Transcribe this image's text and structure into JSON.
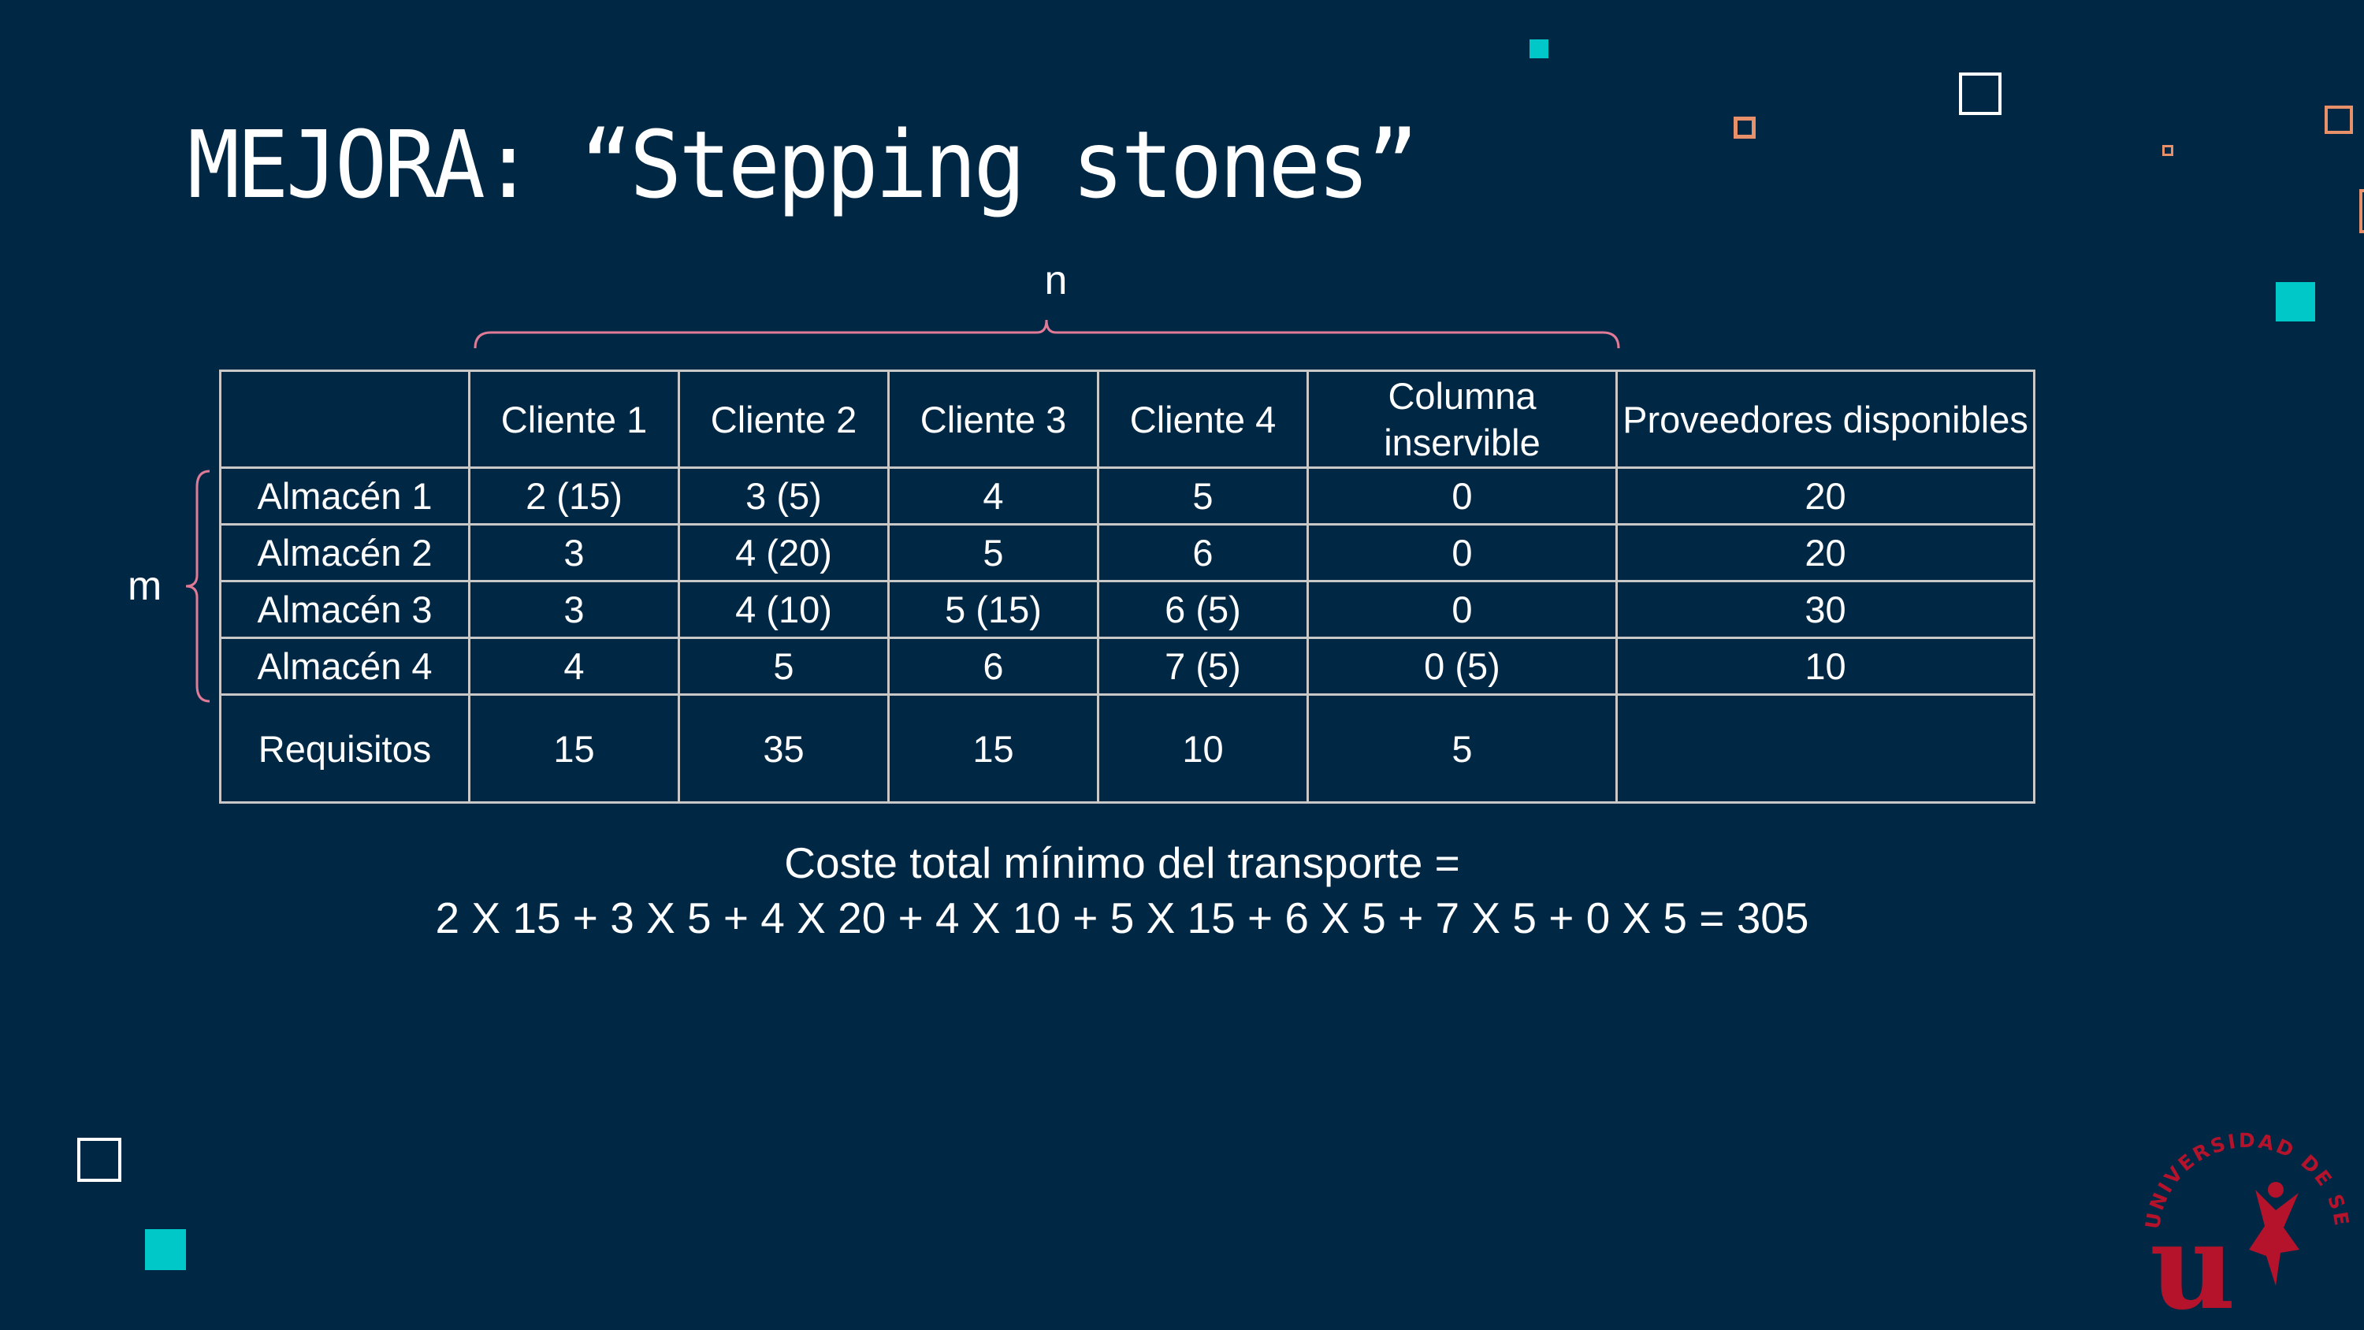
{
  "slide": {
    "title": "MEJORA: “Stepping stones”",
    "label_n": "n",
    "label_m": "m"
  },
  "table": {
    "headers": [
      "",
      "Cliente 1",
      "Cliente 2",
      "Cliente 3",
      "Cliente 4",
      "Columna inservible",
      "Proveedores disponibles"
    ],
    "rows": [
      [
        "Almacén 1",
        "2 (15)",
        "3 (5)",
        "4",
        "5",
        "0",
        "20"
      ],
      [
        "Almacén 2",
        "3",
        "4 (20)",
        "5",
        "6",
        "0",
        "20"
      ],
      [
        "Almacén 3",
        "3",
        "4 (10)",
        "5 (15)",
        "6 (5)",
        "0",
        "30"
      ],
      [
        "Almacén 4",
        "4",
        "5",
        "6",
        "7 (5)",
        "0 (5)",
        "10"
      ],
      [
        "Requisitos",
        "15",
        "35",
        "15",
        "10",
        "5",
        ""
      ]
    ]
  },
  "cost": {
    "line1": "Coste total mínimo del transporte =",
    "line2": "2 X 15 + 3 X 5 + 4 X 20 + 4 X 10 + 5 X 15 + 6 X 5 + 7 X 5 + 0 X 5 = 305"
  },
  "logo": {
    "text": "UNIVERSIDAD DE SEVILLA",
    "letter": "u"
  },
  "colors": {
    "background": "#002845",
    "teal": "#00c8c8",
    "orange": "#e8906a",
    "brace": "#e07a96",
    "logo_red": "#b5132b"
  }
}
